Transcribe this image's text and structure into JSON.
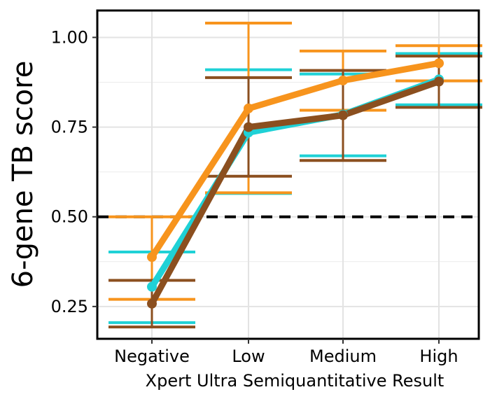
{
  "chart_data": {
    "type": "line",
    "title": "",
    "xlabel": "Xpert Ultra Semiquantitative Result",
    "ylabel": "6-gene TB score",
    "categories": [
      "Negative",
      "Low",
      "Medium",
      "High"
    ],
    "ylim": [
      0.16,
      1.075
    ],
    "yticks": [
      0.25,
      0.5,
      0.75,
      1.0
    ],
    "ytick_labels": [
      "0.25",
      "0.50",
      "0.75",
      "1.00"
    ],
    "reference_line": {
      "y": 0.5,
      "style": "dashed",
      "color": "#000000"
    },
    "grid": true,
    "series": [
      {
        "color": "#1fd1d6",
        "values": [
          0.305,
          0.735,
          0.785,
          0.883
        ],
        "lower": [
          0.205,
          0.565,
          0.67,
          0.812
        ],
        "upper": [
          0.402,
          0.91,
          0.898,
          0.955
        ]
      },
      {
        "color": "#f7941d",
        "values": [
          0.388,
          0.802,
          0.88,
          0.928
        ],
        "lower": [
          0.27,
          0.567,
          0.797,
          0.879
        ],
        "upper": [
          0.5,
          1.04,
          0.962,
          0.977
        ]
      },
      {
        "color": "#8b4f1f",
        "values": [
          0.258,
          0.75,
          0.783,
          0.877
        ],
        "lower": [
          0.193,
          0.613,
          0.657,
          0.805
        ],
        "upper": [
          0.323,
          0.888,
          0.908,
          0.948
        ]
      }
    ]
  }
}
